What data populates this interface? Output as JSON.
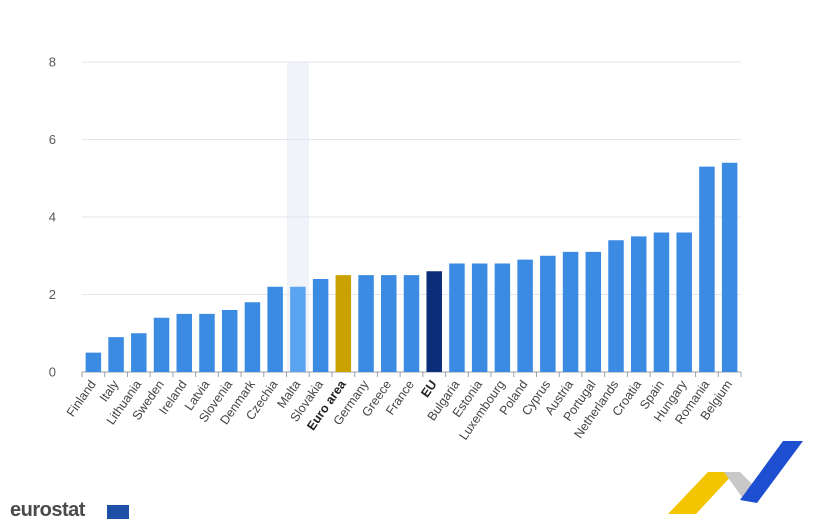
{
  "brand": {
    "logo_text": "eurostat"
  },
  "colors": {
    "default_bar": "#3b8be2",
    "highlight_bar": "#5aa3f0",
    "euro_area_bar": "#c9a100",
    "eu_bar": "#0b2d7a",
    "grid": "#e3e6ee",
    "hover_band": "#f1f3fb",
    "decor_yellow": "#f3c400",
    "decor_blue": "#1f4fd1",
    "decor_grey": "#c8c8c8"
  },
  "chart_data": {
    "type": "bar",
    "title": "",
    "xlabel": "",
    "ylabel": "",
    "ylim": [
      0,
      8
    ],
    "yticks": [
      0,
      2,
      4,
      6,
      8
    ],
    "grid": true,
    "highlighted_category": "Malta",
    "bold_categories": [
      "Euro area",
      "EU"
    ],
    "categories": [
      "Finland",
      "Italy",
      "Lithuania",
      "Sweden",
      "Ireland",
      "Latvia",
      "Slovenia",
      "Denmark",
      "Czechia",
      "Malta",
      "Slovakia",
      "Euro area",
      "Germany",
      "Greece",
      "France",
      "EU",
      "Bulgaria",
      "Estonia",
      "Luxembourg",
      "Poland",
      "Cyprus",
      "Austria",
      "Portugal",
      "Netherlands",
      "Croatia",
      "Spain",
      "Hungary",
      "Romania",
      "Belgium"
    ],
    "values": [
      0.5,
      0.9,
      1.0,
      1.4,
      1.5,
      1.5,
      1.6,
      1.8,
      2.2,
      2.2,
      2.4,
      2.5,
      2.5,
      2.5,
      2.5,
      2.6,
      2.8,
      2.8,
      2.8,
      2.9,
      3.0,
      3.1,
      3.1,
      3.4,
      3.5,
      3.6,
      3.6,
      5.3,
      5.4
    ]
  }
}
